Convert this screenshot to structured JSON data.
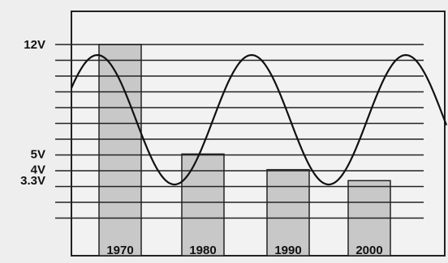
{
  "chart_data": {
    "type": "bar",
    "title": "",
    "xlabel": "",
    "ylabel": "",
    "categories": [
      "1970",
      "1980",
      "1990",
      "2000"
    ],
    "values": [
      12,
      5,
      4,
      3.3
    ],
    "ylim": [
      0,
      14
    ],
    "y_tick_labels": [
      {
        "value": 12,
        "label": "12V"
      },
      {
        "value": 5,
        "label": "5V"
      },
      {
        "value": 4,
        "label": "4V"
      },
      {
        "value": 3.3,
        "label": "3.3V"
      }
    ],
    "grid": true,
    "overlay": {
      "type": "sine-wave",
      "description_visible": false
    },
    "colors": {
      "background": "#eeeeee",
      "plot_background": "#f2f2f2",
      "bar_fill": "#c8c8c8",
      "bar_stroke": "#222222",
      "grid": "#222222",
      "wave": "#111111"
    }
  }
}
